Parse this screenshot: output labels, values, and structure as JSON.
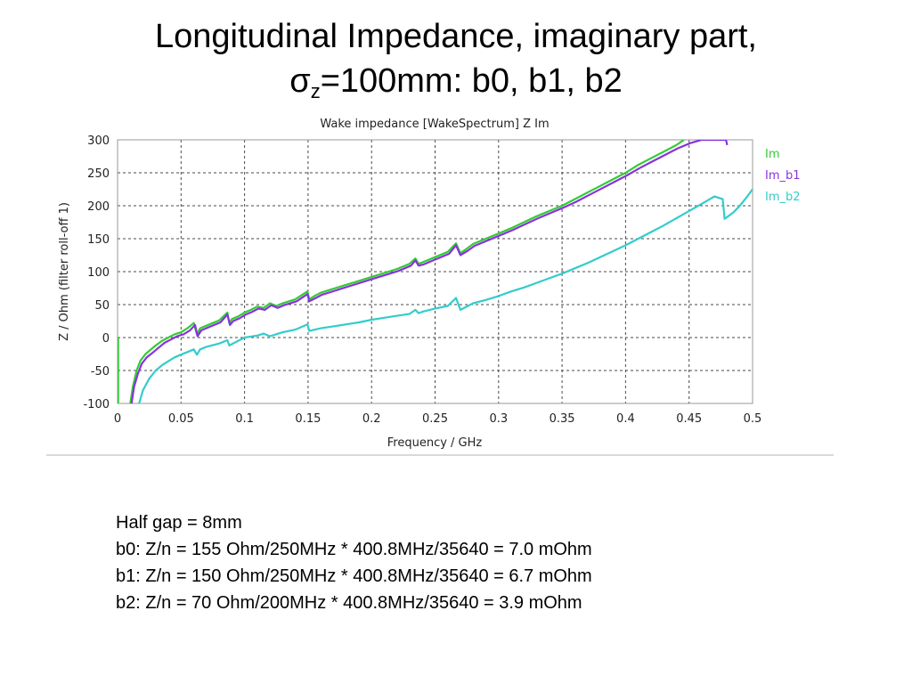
{
  "slide": {
    "title_line1": "Longitudinal Impedance, imaginary part,",
    "title_sigma": "σ",
    "title_sub": "z",
    "title_rest": "=100mm: b0, b1, b2"
  },
  "notes": [
    "Half gap = 8mm",
    "b0: Z/n = 155 Ohm/250MHz * 400.8MHz/35640 = 7.0 mOhm",
    "b1: Z/n = 150 Ohm/250MHz * 400.8MHz/35640 = 6.7 mOhm",
    "b2: Z/n = 70 Ohm/200MHz * 400.8MHz/35640 = 3.9 mOhm"
  ],
  "chart_data": {
    "type": "line",
    "title": "Wake impedance [WakeSpectrum] Z Im",
    "xlabel": "Frequency / GHz",
    "ylabel": "Z / Ohm (filter roll-off 1)",
    "xlim": [
      0,
      0.5
    ],
    "ylim": [
      -100,
      300
    ],
    "xticks": [
      "0",
      "0.05",
      "0.1",
      "0.15",
      "0.2",
      "0.25",
      "0.3",
      "0.35",
      "0.4",
      "0.45",
      "0.5"
    ],
    "yticks": [
      "-100",
      "-50",
      "0",
      "50",
      "100",
      "150",
      "200",
      "250",
      "300"
    ],
    "grid": true,
    "legend_position": "right",
    "series": [
      {
        "name": "Im",
        "color": "#33cc33",
        "points": [
          [
            0.01,
            -100
          ],
          [
            0.012,
            -75
          ],
          [
            0.015,
            -50
          ],
          [
            0.018,
            -35
          ],
          [
            0.022,
            -25
          ],
          [
            0.025,
            -20
          ],
          [
            0.03,
            -12
          ],
          [
            0.035,
            -5
          ],
          [
            0.04,
            0
          ],
          [
            0.045,
            5
          ],
          [
            0.05,
            8
          ],
          [
            0.055,
            14
          ],
          [
            0.06,
            22
          ],
          [
            0.0625,
            5
          ],
          [
            0.065,
            14
          ],
          [
            0.07,
            18
          ],
          [
            0.075,
            22
          ],
          [
            0.08,
            26
          ],
          [
            0.0865,
            38
          ],
          [
            0.088,
            22
          ],
          [
            0.09,
            28
          ],
          [
            0.095,
            32
          ],
          [
            0.1,
            38
          ],
          [
            0.105,
            42
          ],
          [
            0.11,
            47
          ],
          [
            0.115,
            45
          ],
          [
            0.12,
            52
          ],
          [
            0.125,
            48
          ],
          [
            0.13,
            52
          ],
          [
            0.14,
            58
          ],
          [
            0.1495,
            70
          ],
          [
            0.151,
            58
          ],
          [
            0.155,
            63
          ],
          [
            0.16,
            68
          ],
          [
            0.17,
            74
          ],
          [
            0.18,
            80
          ],
          [
            0.19,
            86
          ],
          [
            0.2,
            92
          ],
          [
            0.21,
            98
          ],
          [
            0.22,
            104
          ],
          [
            0.23,
            112
          ],
          [
            0.2345,
            120
          ],
          [
            0.237,
            112
          ],
          [
            0.24,
            114
          ],
          [
            0.25,
            122
          ],
          [
            0.26,
            130
          ],
          [
            0.2665,
            143
          ],
          [
            0.27,
            128
          ],
          [
            0.275,
            135
          ],
          [
            0.28,
            142
          ],
          [
            0.29,
            150
          ],
          [
            0.3,
            158
          ],
          [
            0.31,
            166
          ],
          [
            0.32,
            175
          ],
          [
            0.33,
            184
          ],
          [
            0.34,
            192
          ],
          [
            0.35,
            200
          ],
          [
            0.36,
            210
          ],
          [
            0.37,
            220
          ],
          [
            0.38,
            230
          ],
          [
            0.39,
            240
          ],
          [
            0.4,
            250
          ],
          [
            0.41,
            262
          ],
          [
            0.42,
            272
          ],
          [
            0.43,
            282
          ],
          [
            0.44,
            292
          ],
          [
            0.446,
            300
          ]
        ]
      },
      {
        "name": "Im_b1",
        "color": "#8833dd",
        "points": [
          [
            0.011,
            -100
          ],
          [
            0.013,
            -75
          ],
          [
            0.016,
            -55
          ],
          [
            0.019,
            -40
          ],
          [
            0.023,
            -30
          ],
          [
            0.027,
            -24
          ],
          [
            0.032,
            -16
          ],
          [
            0.037,
            -8
          ],
          [
            0.042,
            -3
          ],
          [
            0.047,
            2
          ],
          [
            0.052,
            5
          ],
          [
            0.057,
            11
          ],
          [
            0.061,
            19
          ],
          [
            0.063,
            2
          ],
          [
            0.066,
            11
          ],
          [
            0.071,
            15
          ],
          [
            0.076,
            19
          ],
          [
            0.081,
            23
          ],
          [
            0.0865,
            35
          ],
          [
            0.0885,
            19
          ],
          [
            0.091,
            25
          ],
          [
            0.096,
            29
          ],
          [
            0.101,
            35
          ],
          [
            0.106,
            39
          ],
          [
            0.111,
            44
          ],
          [
            0.116,
            42
          ],
          [
            0.121,
            49
          ],
          [
            0.126,
            45
          ],
          [
            0.131,
            49
          ],
          [
            0.141,
            55
          ],
          [
            0.1495,
            66
          ],
          [
            0.151,
            55
          ],
          [
            0.156,
            60
          ],
          [
            0.161,
            65
          ],
          [
            0.171,
            71
          ],
          [
            0.181,
            77
          ],
          [
            0.191,
            83
          ],
          [
            0.201,
            89
          ],
          [
            0.211,
            95
          ],
          [
            0.221,
            101
          ],
          [
            0.231,
            109
          ],
          [
            0.2345,
            117
          ],
          [
            0.237,
            109
          ],
          [
            0.241,
            111
          ],
          [
            0.251,
            119
          ],
          [
            0.261,
            127
          ],
          [
            0.2665,
            140
          ],
          [
            0.27,
            125
          ],
          [
            0.276,
            132
          ],
          [
            0.281,
            139
          ],
          [
            0.291,
            147
          ],
          [
            0.301,
            155
          ],
          [
            0.311,
            163
          ],
          [
            0.321,
            172
          ],
          [
            0.331,
            181
          ],
          [
            0.341,
            189
          ],
          [
            0.351,
            197
          ],
          [
            0.361,
            206
          ],
          [
            0.371,
            216
          ],
          [
            0.381,
            226
          ],
          [
            0.391,
            236
          ],
          [
            0.401,
            246
          ],
          [
            0.411,
            257
          ],
          [
            0.421,
            267
          ],
          [
            0.431,
            277
          ],
          [
            0.441,
            287
          ],
          [
            0.451,
            295
          ],
          [
            0.46,
            300
          ],
          [
            0.479,
            300
          ],
          [
            0.48,
            292
          ]
        ]
      },
      {
        "name": "Im_b2",
        "color": "#33cccc",
        "points": [
          [
            0.017,
            -100
          ],
          [
            0.02,
            -80
          ],
          [
            0.025,
            -62
          ],
          [
            0.03,
            -50
          ],
          [
            0.035,
            -42
          ],
          [
            0.04,
            -36
          ],
          [
            0.045,
            -30
          ],
          [
            0.05,
            -26
          ],
          [
            0.055,
            -22
          ],
          [
            0.06,
            -18
          ],
          [
            0.0625,
            -26
          ],
          [
            0.065,
            -18
          ],
          [
            0.07,
            -14
          ],
          [
            0.08,
            -9
          ],
          [
            0.0865,
            -4
          ],
          [
            0.088,
            -12
          ],
          [
            0.095,
            -5
          ],
          [
            0.1,
            0
          ],
          [
            0.11,
            3
          ],
          [
            0.115,
            6
          ],
          [
            0.12,
            2
          ],
          [
            0.13,
            8
          ],
          [
            0.14,
            12
          ],
          [
            0.1495,
            20
          ],
          [
            0.151,
            10
          ],
          [
            0.16,
            14
          ],
          [
            0.17,
            17
          ],
          [
            0.18,
            20
          ],
          [
            0.19,
            23
          ],
          [
            0.2,
            27
          ],
          [
            0.21,
            30
          ],
          [
            0.22,
            33
          ],
          [
            0.23,
            36
          ],
          [
            0.2345,
            42
          ],
          [
            0.237,
            37
          ],
          [
            0.24,
            39
          ],
          [
            0.25,
            44
          ],
          [
            0.26,
            48
          ],
          [
            0.2665,
            60
          ],
          [
            0.27,
            42
          ],
          [
            0.28,
            52
          ],
          [
            0.29,
            57
          ],
          [
            0.3,
            63
          ],
          [
            0.31,
            70
          ],
          [
            0.32,
            76
          ],
          [
            0.33,
            83
          ],
          [
            0.34,
            90
          ],
          [
            0.35,
            97
          ],
          [
            0.36,
            105
          ],
          [
            0.37,
            113
          ],
          [
            0.38,
            122
          ],
          [
            0.39,
            131
          ],
          [
            0.4,
            140
          ],
          [
            0.41,
            150
          ],
          [
            0.42,
            160
          ],
          [
            0.43,
            170
          ],
          [
            0.44,
            181
          ],
          [
            0.45,
            192
          ],
          [
            0.46,
            203
          ],
          [
            0.47,
            214
          ],
          [
            0.4765,
            210
          ],
          [
            0.478,
            180
          ],
          [
            0.485,
            190
          ],
          [
            0.49,
            200
          ],
          [
            0.495,
            212
          ],
          [
            0.5,
            225
          ]
        ]
      }
    ]
  }
}
